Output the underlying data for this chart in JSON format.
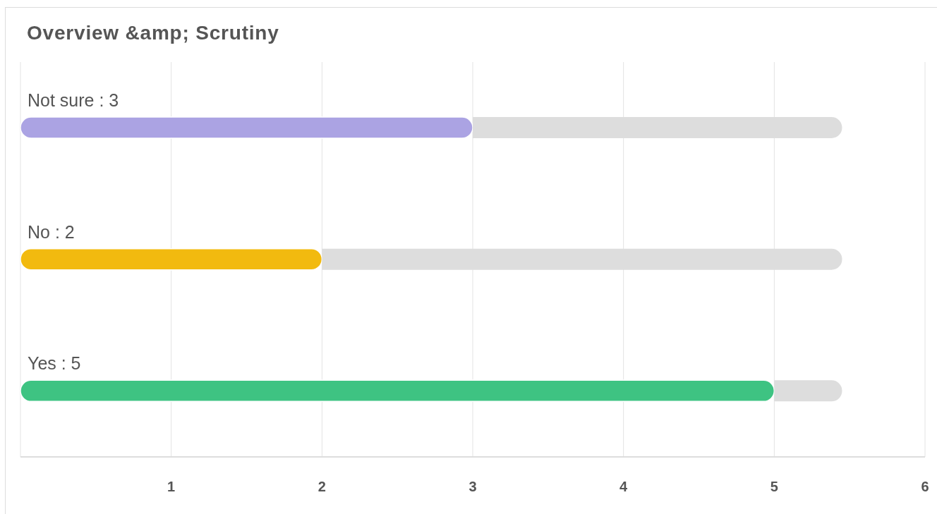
{
  "chart_data": {
    "type": "bar",
    "orientation": "horizontal",
    "stacked": true,
    "title": "Overview &amp; Scrutiny",
    "categories": [
      "Not sure : 3",
      "No : 2",
      "Yes : 5"
    ],
    "series": [
      {
        "colors": [
          "#aba3e3",
          "#f2ba0f",
          "#3ec382"
        ],
        "values": [
          3,
          2,
          5
        ]
      },
      {
        "color": "#dddddd",
        "values": [
          2.45,
          3.45,
          0.45
        ]
      }
    ],
    "xlim": [
      0,
      6
    ],
    "xticks": [
      1,
      2,
      3,
      4,
      5,
      6
    ],
    "grid": "x",
    "tick_labels": "x"
  }
}
